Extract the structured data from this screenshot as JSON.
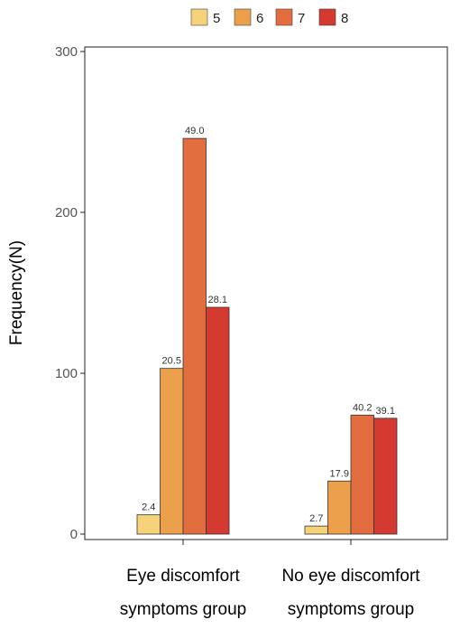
{
  "chart_data": {
    "type": "bar",
    "categories": [
      "Eye discomfort symptoms group",
      "No eye discomfort symptoms group"
    ],
    "category_lines": [
      [
        "Eye discomfort",
        "symptoms group"
      ],
      [
        "No eye discomfort",
        "symptoms group"
      ]
    ],
    "series": [
      {
        "name": "5",
        "color": "#f6d27a",
        "values": [
          12,
          5
        ],
        "labels": [
          "2.4",
          "2.7"
        ]
      },
      {
        "name": "6",
        "color": "#eca04c",
        "values": [
          103,
          33
        ],
        "labels": [
          "20.5",
          "17.9"
        ]
      },
      {
        "name": "7",
        "color": "#e26d3f",
        "values": [
          246,
          74
        ],
        "labels": [
          "49.0",
          "40.2"
        ]
      },
      {
        "name": "8",
        "color": "#d43a2f",
        "values": [
          141,
          72
        ],
        "labels": [
          "28.1",
          "39.1"
        ]
      }
    ],
    "ylabel": "Frequency(N)",
    "xlabel": "",
    "yticks": [
      0,
      100,
      200,
      300
    ],
    "ylim": [
      0,
      300
    ],
    "legend_position": "top-center",
    "grid": false
  }
}
